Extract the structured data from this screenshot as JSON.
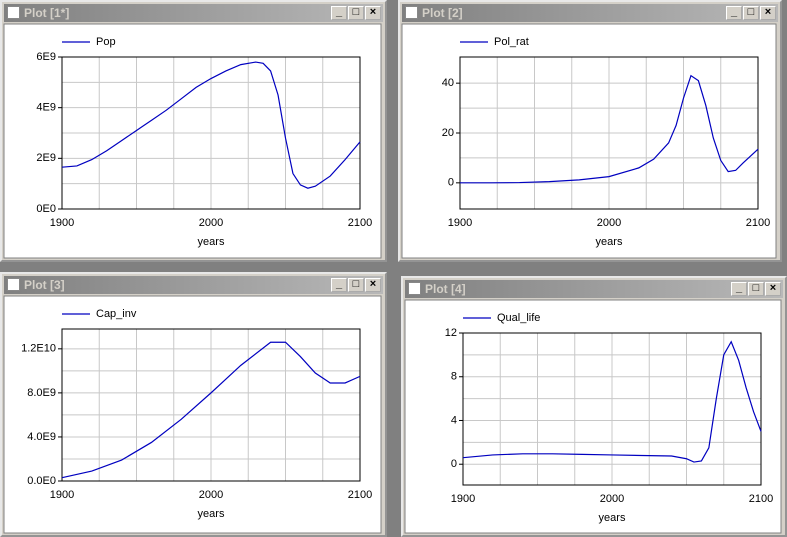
{
  "chart_data": [
    {
      "type": "line",
      "title": "Plot [1*]",
      "xlabel": "years",
      "x": [
        1900,
        1910,
        1920,
        1930,
        1940,
        1950,
        1960,
        1970,
        1980,
        1990,
        2000,
        2010,
        2020,
        2030,
        2035,
        2040,
        2045,
        2050,
        2055,
        2060,
        2065,
        2070,
        2080,
        2090,
        2100
      ],
      "series": [
        {
          "name": "Pop",
          "color": "#0000c0",
          "values": [
            1650000000.0,
            1700000000.0,
            1950000000.0,
            2300000000.0,
            2700000000.0,
            3100000000.0,
            3500000000.0,
            3900000000.0,
            4350000000.0,
            4800000000.0,
            5150000000.0,
            5450000000.0,
            5700000000.0,
            5800000000.0,
            5750000000.0,
            5450000000.0,
            4500000000.0,
            2800000000.0,
            1400000000.0,
            950000000.0,
            820000000.0,
            900000000.0,
            1300000000.0,
            1950000000.0,
            2650000000.0
          ]
        }
      ],
      "xlim": [
        1900,
        2100
      ],
      "xticks": [
        1900,
        2000,
        2100
      ],
      "ylim": [
        0,
        6000000000.0
      ],
      "yticks": [
        {
          "value": 0,
          "label": "0E0"
        },
        {
          "value": 2000000000.0,
          "label": "2E9"
        },
        {
          "value": 4000000000.0,
          "label": "4E9"
        },
        {
          "value": 6000000000.0,
          "label": "6E9"
        }
      ],
      "grid": true
    },
    {
      "type": "line",
      "title": "Plot [2]",
      "xlabel": "years",
      "x": [
        1900,
        1920,
        1940,
        1960,
        1980,
        2000,
        2020,
        2030,
        2040,
        2045,
        2050,
        2055,
        2060,
        2065,
        2070,
        2075,
        2080,
        2085,
        2090,
        2100
      ],
      "series": [
        {
          "name": "Pol_rat",
          "color": "#0000c0",
          "values": [
            0,
            0,
            0.1,
            0.5,
            1.2,
            2.5,
            6,
            9.5,
            16,
            23,
            34,
            43,
            41,
            31,
            18,
            9,
            4.5,
            5,
            8,
            13.5
          ]
        }
      ],
      "xlim": [
        1900,
        2100
      ],
      "xticks": [
        1900,
        2000,
        2100
      ],
      "ylim": [
        -10.5,
        50.5
      ],
      "yticks": [
        0,
        20,
        40
      ],
      "grid": true
    },
    {
      "type": "line",
      "title": "Plot [3]",
      "xlabel": "years",
      "x": [
        1900,
        1920,
        1940,
        1960,
        1980,
        2000,
        2020,
        2040,
        2050,
        2060,
        2070,
        2080,
        2090,
        2100
      ],
      "series": [
        {
          "name": "Cap_inv",
          "color": "#0000c0",
          "values": [
            300000000.0,
            900000000.0,
            1900000000.0,
            3500000000.0,
            5600000000.0,
            8000000000.0,
            10500000000.0,
            12600000000.0,
            12600000000.0,
            11300000000.0,
            9800000000.0,
            8900000000.0,
            8900000000.0,
            9500000000.0
          ]
        }
      ],
      "xlim": [
        1900,
        2100
      ],
      "xticks": [
        1900,
        2000,
        2100
      ],
      "ylim": [
        0,
        13800000000.0
      ],
      "yticks": [
        {
          "value": 0,
          "label": "0.0E0"
        },
        {
          "value": 4000000000.0,
          "label": "4.0E9"
        },
        {
          "value": 8000000000.0,
          "label": "8.0E9"
        },
        {
          "value": 12000000000.0,
          "label": "1.2E10"
        }
      ],
      "grid": true
    },
    {
      "type": "line",
      "title": "Plot [4]",
      "xlabel": "years",
      "x": [
        1900,
        1920,
        1940,
        1960,
        1980,
        2000,
        2020,
        2040,
        2050,
        2055,
        2060,
        2065,
        2070,
        2075,
        2080,
        2085,
        2090,
        2095,
        2100
      ],
      "series": [
        {
          "name": "Qual_life",
          "color": "#0000c0",
          "values": [
            0.6,
            0.85,
            0.95,
            0.95,
            0.9,
            0.85,
            0.8,
            0.75,
            0.5,
            0.2,
            0.3,
            1.5,
            6,
            10,
            11.2,
            9.5,
            7,
            4.8,
            3
          ]
        }
      ],
      "xlim": [
        1900,
        2100
      ],
      "xticks": [
        1900,
        2000,
        2100
      ],
      "ylim": [
        -1.9,
        12
      ],
      "yticks": [
        0,
        4,
        8,
        12
      ],
      "grid": true
    }
  ]
}
